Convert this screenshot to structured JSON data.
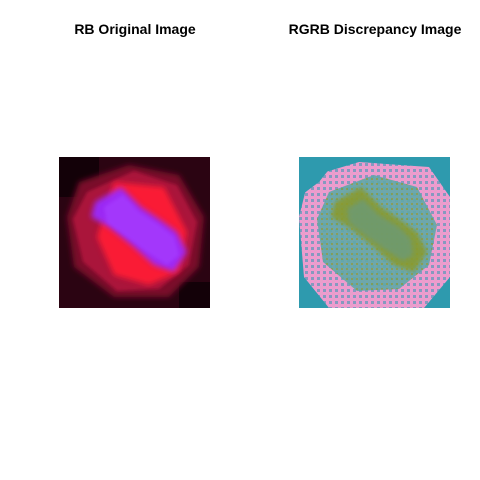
{
  "panels": [
    {
      "title": "RB Original Image",
      "icon": "cell-fluorescence-image",
      "palette": {
        "background": "#2b0412",
        "membrane": "#b0123d",
        "chromatin": "#9a2cff",
        "spindle": "#ff1a35"
      }
    },
    {
      "title": "RGRB Discrepancy Image",
      "icon": "discrepancy-map-image",
      "palette": {
        "background": "#2e9aae",
        "halo": "#f09ad0",
        "chromatin": "#8a9a2a",
        "accent": "#e08a6a"
      }
    }
  ]
}
